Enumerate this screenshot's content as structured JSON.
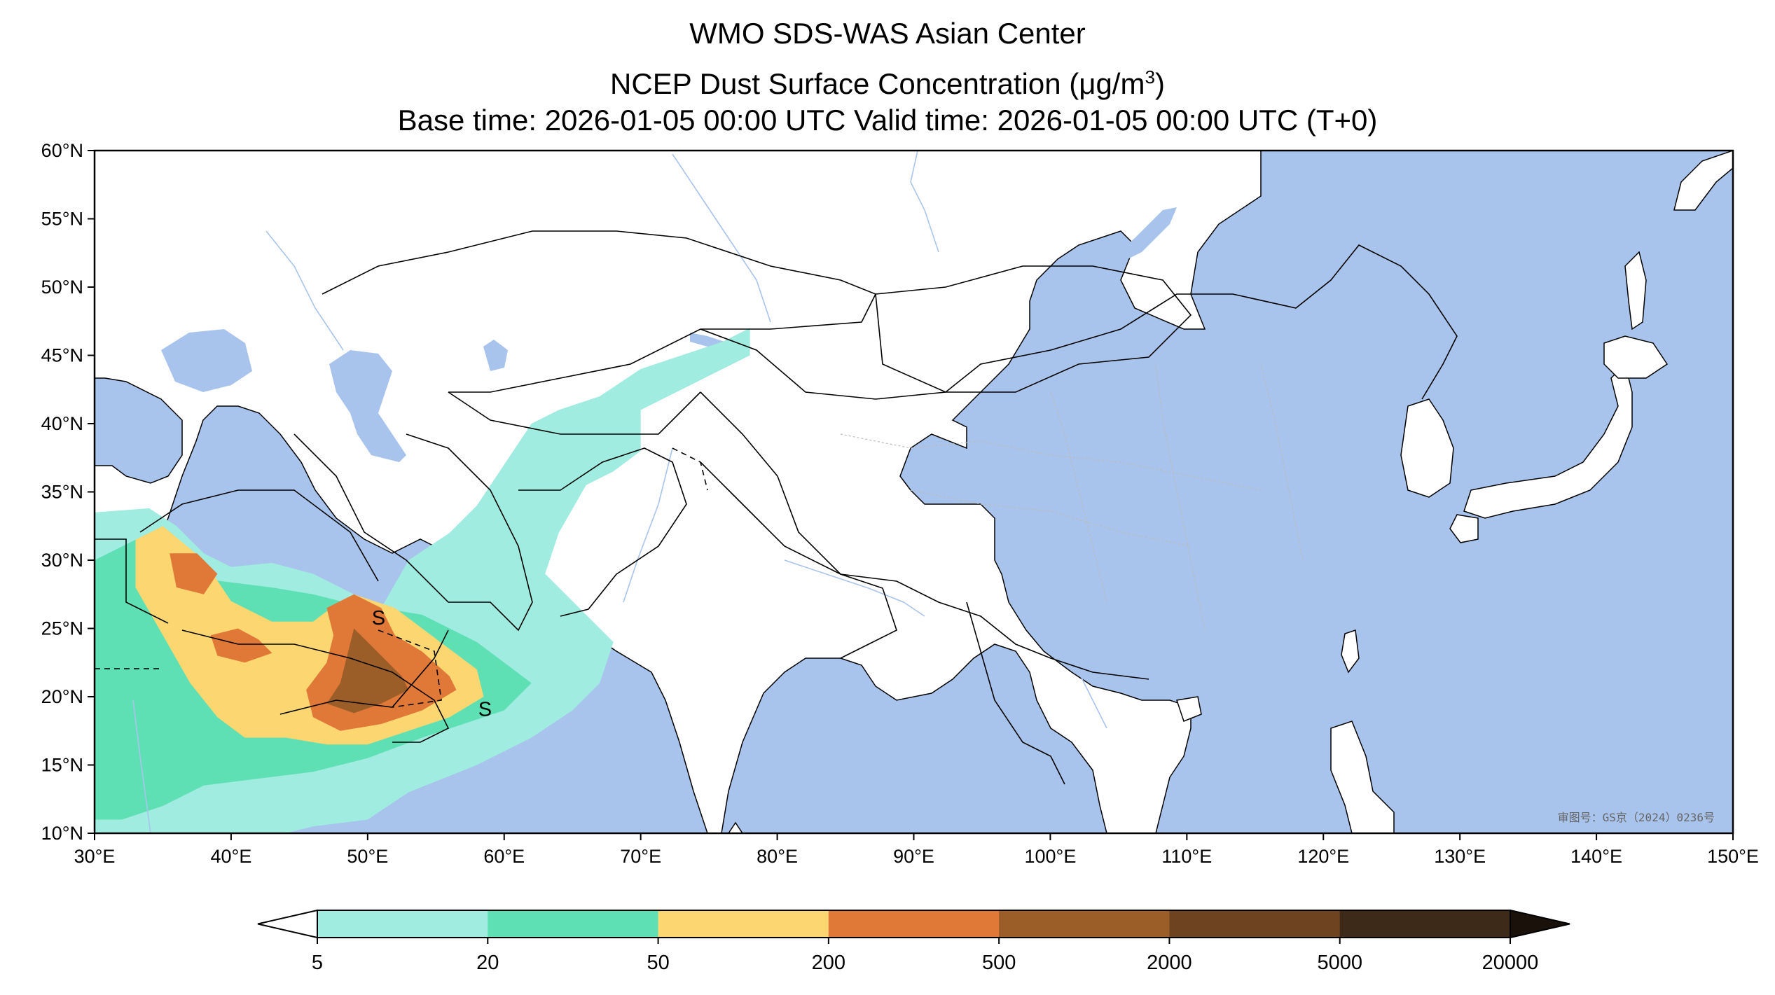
{
  "title": {
    "line1": "WMO SDS-WAS Asian Center",
    "line2_prefix": "NCEP Dust Surface Concentration (",
    "line2_unit_mu": "μ",
    "line2_unit_g": "g/m",
    "line2_sup": "3",
    "line2_suffix": ")",
    "line3": "Base time: 2026-01-05 00:00 UTC Valid time: 2026-01-05 00:00 UTC (T+0)"
  },
  "map": {
    "lon_range": [
      30,
      150
    ],
    "lat_range": [
      10,
      60
    ],
    "lon_ticks": [
      {
        "value": 30,
        "label": "30°E"
      },
      {
        "value": 40,
        "label": "40°E"
      },
      {
        "value": 50,
        "label": "50°E"
      },
      {
        "value": 60,
        "label": "60°E"
      },
      {
        "value": 70,
        "label": "70°E"
      },
      {
        "value": 80,
        "label": "80°E"
      },
      {
        "value": 90,
        "label": "90°E"
      },
      {
        "value": 100,
        "label": "100°E"
      },
      {
        "value": 110,
        "label": "110°E"
      },
      {
        "value": 120,
        "label": "120°E"
      },
      {
        "value": 130,
        "label": "130°E"
      },
      {
        "value": 140,
        "label": "140°E"
      },
      {
        "value": 150,
        "label": "150°E"
      }
    ],
    "lat_ticks": [
      {
        "value": 60,
        "label": "60°N"
      },
      {
        "value": 55,
        "label": "55°N"
      },
      {
        "value": 50,
        "label": "50°N"
      },
      {
        "value": 45,
        "label": "45°N"
      },
      {
        "value": 40,
        "label": "40°N"
      },
      {
        "value": 35,
        "label": "35°N"
      },
      {
        "value": 30,
        "label": "30°N"
      },
      {
        "value": 25,
        "label": "25°N"
      },
      {
        "value": 20,
        "label": "20°N"
      },
      {
        "value": 15,
        "label": "15°N"
      },
      {
        "value": 10,
        "label": "10°N"
      }
    ],
    "colors": {
      "ocean": "#a8c4ec",
      "land": "#ffffff",
      "border": "#000000",
      "river": "#a8c4ec",
      "province": "#bbbbbb"
    },
    "storm_markers": [
      {
        "label": "S",
        "lon": 50.8,
        "lat": 26.0
      },
      {
        "label": "S",
        "lon": 58.6,
        "lat": 19.3
      }
    ],
    "watermark": "审图号：GS京（2024）0236号"
  },
  "colorbar": {
    "bins": [
      {
        "from": 5,
        "to": 20,
        "color": "#a0ece0"
      },
      {
        "from": 20,
        "to": 50,
        "color": "#5fe0b4"
      },
      {
        "from": 50,
        "to": 200,
        "color": "#fcd670"
      },
      {
        "from": 200,
        "to": 500,
        "color": "#e07838"
      },
      {
        "from": 500,
        "to": 2000,
        "color": "#9c5e28"
      },
      {
        "from": 2000,
        "to": 5000,
        "color": "#6e4420"
      },
      {
        "from": 5000,
        "to": 20000,
        "color": "#3e2a18"
      }
    ],
    "under_color": "#ffffff",
    "over_color": "#1a120a",
    "tick_labels": [
      "5",
      "20",
      "50",
      "200",
      "500",
      "2000",
      "5000",
      "20000"
    ]
  },
  "dust_fields": [
    {
      "level": "5-20",
      "color": "#a0ece0",
      "polygon": [
        [
          30,
          33.5
        ],
        [
          34,
          33.8
        ],
        [
          36,
          32.5
        ],
        [
          38,
          30.5
        ],
        [
          40,
          29.5
        ],
        [
          43,
          29.8
        ],
        [
          46,
          29
        ],
        [
          48,
          28
        ],
        [
          51,
          26.5
        ],
        [
          53,
          30
        ],
        [
          56,
          32
        ],
        [
          58,
          34
        ],
        [
          60,
          37
        ],
        [
          62,
          40
        ],
        [
          64,
          41
        ],
        [
          67,
          42
        ],
        [
          70,
          44
        ],
        [
          73,
          45
        ],
        [
          76,
          46
        ],
        [
          78,
          47
        ],
        [
          78,
          45
        ],
        [
          74,
          43
        ],
        [
          70,
          41
        ],
        [
          70,
          38
        ],
        [
          68,
          36.5
        ],
        [
          66,
          35.5
        ],
        [
          64,
          32
        ],
        [
          63,
          29
        ],
        [
          66,
          26
        ],
        [
          68,
          24
        ],
        [
          67,
          21
        ],
        [
          65,
          19
        ],
        [
          62,
          17
        ],
        [
          58,
          15
        ],
        [
          53,
          13
        ],
        [
          50,
          11
        ],
        [
          46,
          10.5
        ],
        [
          44,
          10
        ],
        [
          30,
          10
        ]
      ]
    },
    {
      "level": "20-50",
      "color": "#5fe0b4",
      "polygon": [
        [
          30,
          30
        ],
        [
          33,
          31.5
        ],
        [
          35,
          32
        ],
        [
          37,
          30
        ],
        [
          39,
          28.5
        ],
        [
          43,
          28
        ],
        [
          46,
          27.5
        ],
        [
          48,
          27
        ],
        [
          51,
          26.5
        ],
        [
          54,
          26
        ],
        [
          56,
          25
        ],
        [
          58,
          24
        ],
        [
          60,
          22.5
        ],
        [
          62,
          21
        ],
        [
          60,
          19
        ],
        [
          57,
          18
        ],
        [
          54,
          17
        ],
        [
          50,
          15.5
        ],
        [
          46,
          14.5
        ],
        [
          42,
          14
        ],
        [
          38,
          13.5
        ],
        [
          35,
          12
        ],
        [
          32,
          11
        ],
        [
          30,
          11
        ]
      ]
    },
    {
      "level": "50-200",
      "color": "#fcd670",
      "polygon": [
        [
          33,
          31.5
        ],
        [
          35,
          32.5
        ],
        [
          38,
          30
        ],
        [
          40,
          27
        ],
        [
          43,
          25.5
        ],
        [
          46,
          25.5
        ],
        [
          48,
          27
        ],
        [
          49,
          27.5
        ],
        [
          52,
          26.5
        ],
        [
          54,
          25
        ],
        [
          56,
          23.5
        ],
        [
          58,
          22
        ],
        [
          58.5,
          20
        ],
        [
          56,
          18.5
        ],
        [
          53,
          17.5
        ],
        [
          50,
          16.5
        ],
        [
          47,
          16.5
        ],
        [
          44,
          17
        ],
        [
          41,
          17
        ],
        [
          39,
          18.5
        ],
        [
          37,
          21
        ],
        [
          35,
          24.5
        ],
        [
          33,
          28
        ]
      ]
    },
    {
      "level": "200-500",
      "color": "#e07838",
      "polygon": [
        [
          35.5,
          30.5
        ],
        [
          37.5,
          30.5
        ],
        [
          39,
          29
        ],
        [
          38,
          27.5
        ],
        [
          36,
          28
        ]
      ]
    },
    {
      "level": "200-500",
      "color": "#e07838",
      "polygon": [
        [
          38.5,
          24.5
        ],
        [
          40.5,
          25
        ],
        [
          42,
          24.2
        ],
        [
          43,
          23.2
        ],
        [
          41,
          22.5
        ],
        [
          39,
          23
        ]
      ]
    },
    {
      "level": "200-500",
      "color": "#e07838",
      "polygon": [
        [
          47,
          26.5
        ],
        [
          49,
          27.5
        ],
        [
          51,
          26.5
        ],
        [
          52,
          24.5
        ],
        [
          54,
          23.3
        ],
        [
          56,
          21.5
        ],
        [
          56.5,
          20.5
        ],
        [
          54,
          19
        ],
        [
          51,
          18
        ],
        [
          48,
          17.5
        ],
        [
          46,
          18.5
        ],
        [
          45.5,
          20.5
        ],
        [
          47,
          22.5
        ],
        [
          47.5,
          24.5
        ]
      ]
    },
    {
      "level": "500-2000",
      "color": "#9c5e28",
      "polygon": [
        [
          49,
          25
        ],
        [
          50,
          24
        ],
        [
          51,
          23
        ],
        [
          52.5,
          21.5
        ],
        [
          53,
          20.5
        ],
        [
          51,
          19.5
        ],
        [
          49,
          18.8
        ],
        [
          47,
          19.5
        ],
        [
          48,
          21
        ],
        [
          48.5,
          23
        ]
      ]
    }
  ]
}
